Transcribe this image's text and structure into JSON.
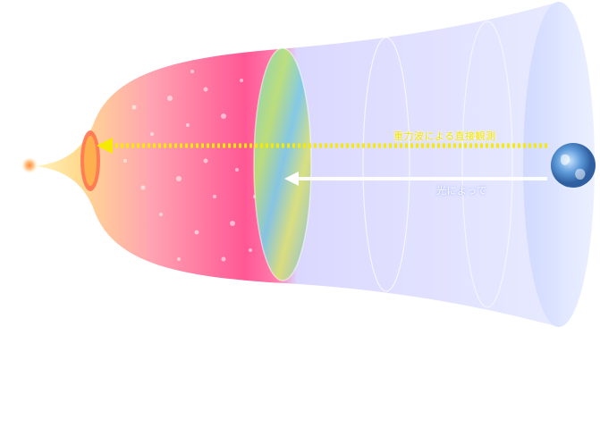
{
  "labels": {
    "gravitational_wave": "重力波による直接観測",
    "light": "光によって"
  },
  "colors": {
    "early_universe_warm": "#ffd98a",
    "inflation_pink": "#ff4f8f",
    "cmb_surface": "#7fd6c6",
    "late_universe_lavender": "#dcdcff",
    "gw_arrow": "#f5ea00",
    "light_arrow": "#ffffff",
    "earth_blue": "#2f78c4"
  },
  "icons": [
    "big-bang-origin-icon",
    "earth-icon"
  ]
}
